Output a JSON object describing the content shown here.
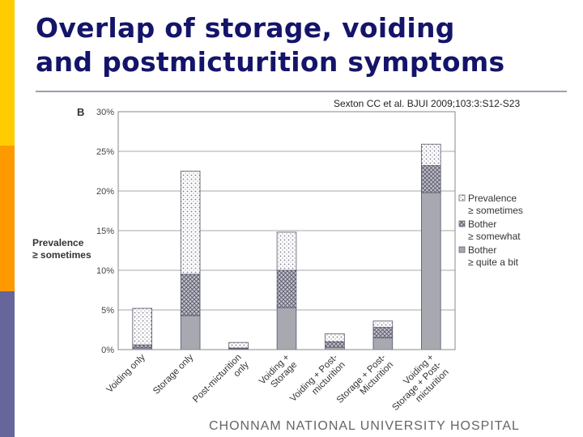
{
  "slide": {
    "title_line1": "Overlap of storage, voiding",
    "title_line2": "and postmicturition symptoms",
    "citation": "Sexton  CC et al. BJUI 2009;103:3:S12-S23",
    "footer": "CHONNAM  NATIONAL  UNIVERSITY  HOSPITAL",
    "sidebar_colors": [
      "#ffcc00",
      "#ff9900",
      "#66669a"
    ]
  },
  "chart_data": {
    "type": "bar",
    "stacked": true,
    "panel_label": "B",
    "ylabel_line1": "Prevalence",
    "ylabel_line2": "≥ sometimes",
    "ylim": [
      0,
      30
    ],
    "yticks": [
      "0%",
      "5%",
      "10%",
      "15%",
      "20%",
      "25%",
      "30%"
    ],
    "grid": true,
    "legend_position": "right",
    "categories": [
      [
        "Voiding only"
      ],
      [
        "Storage only"
      ],
      [
        "Post-micturition",
        "only"
      ],
      [
        "Voiding +",
        "Storage"
      ],
      [
        "Voiding + Post-",
        "micturition"
      ],
      [
        "Storage + Post-",
        "Micturition"
      ],
      [
        "Voiding +",
        "Storage + Post-",
        "micturition"
      ]
    ],
    "series": [
      {
        "name_line1": "Bother",
        "name_line2": "≥ quite a bit",
        "values": [
          0.2,
          4.3,
          0.1,
          5.3,
          0.3,
          1.5,
          19.8
        ],
        "color": "#a8a8b0",
        "pattern": "solid"
      },
      {
        "name_line1": "Bother",
        "name_line2": "≥ somewhat",
        "values": [
          0.4,
          5.2,
          0.1,
          4.7,
          0.7,
          1.3,
          3.4
        ],
        "color": "#b8b8c0",
        "pattern": "crosshatch"
      },
      {
        "name_line1": "Prevalence",
        "name_line2": "≥ sometimes",
        "values": [
          4.6,
          13.0,
          0.7,
          4.8,
          1.0,
          0.8,
          2.7
        ],
        "color": "#ffffff",
        "pattern": "dots"
      }
    ]
  }
}
